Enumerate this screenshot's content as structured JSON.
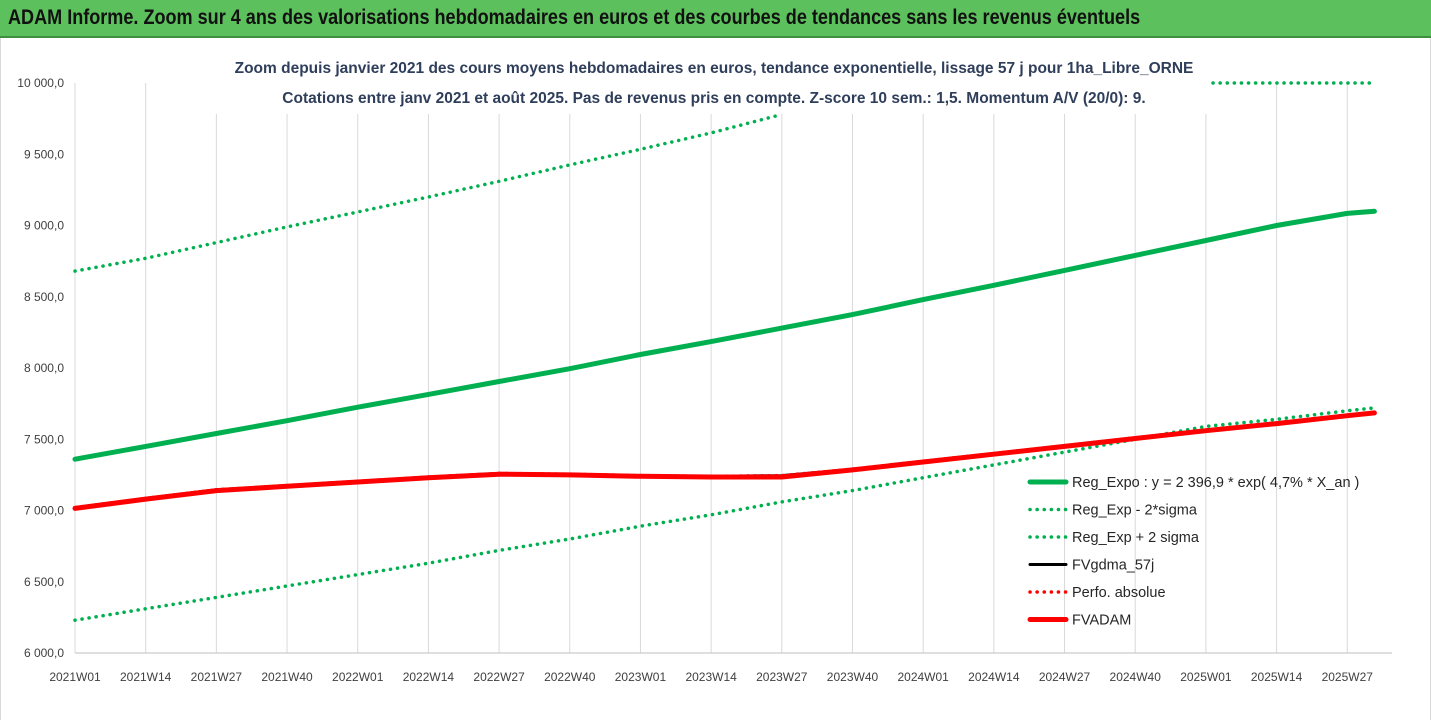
{
  "header": {
    "title": "ADAM Informe. Zoom sur 4 ans des valorisations hebdomadaires en euros et des courbes de tendances sans les revenus éventuels"
  },
  "chart_data": {
    "type": "line",
    "title_lines": [
      "Zoom depuis janvier 2021 des cours moyens hebdomadaires en euros, tendance exponentielle, lissage 57 j pour 1ha_Libre_ORNE",
      "Cotations entre janv 2021 et août 2025.  Pas de revenus pris en compte. Z-score 10 sem.: 1,5. Momentum A/V (20/0): 9."
    ],
    "xlabel": "",
    "ylabel": "",
    "ylim": [
      6000,
      10000
    ],
    "yticks": [
      "10 000,0",
      "9 500,0",
      "9 000,0",
      "8 500,0",
      "8 000,0",
      "7 500,0",
      "7 000,0",
      "6 500,0",
      "6 000,0"
    ],
    "ytick_values": [
      10000,
      9500,
      9000,
      8500,
      8000,
      7500,
      7000,
      6500,
      6000
    ],
    "xticks": [
      "2021W01",
      "2021W14",
      "2021W27",
      "2021W40",
      "2022W01",
      "2022W14",
      "2022W27",
      "2022W40",
      "2023W01",
      "2023W14",
      "2023W27",
      "2023W40",
      "2024W01",
      "2024W14",
      "2024W27",
      "2024W40",
      "2025W01",
      "2025W14",
      "2025W27"
    ],
    "grid": "vertical",
    "legend_position": "right",
    "x": [
      "2021W01",
      "2021W14",
      "2021W27",
      "2021W40",
      "2022W01",
      "2022W14",
      "2022W27",
      "2022W40",
      "2023W01",
      "2023W14",
      "2023W27",
      "2023W40",
      "2024W01",
      "2024W14",
      "2024W27",
      "2024W40",
      "2025W01",
      "2025W14",
      "2025W27",
      "2025W32"
    ],
    "series": [
      {
        "name": "Reg_Expo : y = 2 396,9 * exp( 4,7% *  X_an )",
        "style": "solid-thick",
        "color": "#00b050",
        "values": [
          7360,
          7450,
          7540,
          7630,
          7725,
          7815,
          7905,
          7995,
          8095,
          8185,
          8280,
          8375,
          8480,
          8580,
          8685,
          8790,
          8895,
          9000,
          9085,
          9100
        ]
      },
      {
        "name": "Reg_Exp - 2*sigma",
        "style": "dotted",
        "color": "#00b050",
        "values": [
          6230,
          6310,
          6390,
          6470,
          6550,
          6630,
          6720,
          6800,
          6890,
          6970,
          7060,
          7140,
          7230,
          7320,
          7410,
          7500,
          7590,
          7640,
          7700,
          7720
        ]
      },
      {
        "name": "Reg_Exp + 2 sigma",
        "style": "dotted",
        "color": "#00b050",
        "values": [
          8680,
          8770,
          8880,
          8990,
          9095,
          9200,
          9310,
          9425,
          9535,
          9650,
          9780,
          null,
          null,
          null,
          null,
          null,
          10000,
          10000,
          10000,
          10000
        ]
      },
      {
        "name": "FVgdma_57j",
        "style": "solid",
        "color": "#000000",
        "values": [
          7020,
          7085,
          7145,
          7175,
          7205,
          7235,
          7260,
          7255,
          7245,
          7240,
          7245,
          7290,
          7345,
          7400,
          7455,
          7510,
          7565,
          7615,
          7670,
          7685
        ]
      },
      {
        "name": "Perfo. absolue",
        "style": "dotted",
        "color": "#ff0000",
        "values": [
          7020,
          7085,
          7145,
          7175,
          7205,
          7235,
          7260,
          7255,
          7245,
          7240,
          7245,
          7290,
          7345,
          7400,
          7455,
          7510,
          7565,
          7615,
          7670,
          7685
        ]
      },
      {
        "name": "FVADAM",
        "style": "solid-thick",
        "color": "#ff0000",
        "values": [
          7015,
          7080,
          7140,
          7170,
          7200,
          7230,
          7255,
          7250,
          7240,
          7235,
          7235,
          7285,
          7340,
          7395,
          7450,
          7505,
          7560,
          7610,
          7665,
          7685
        ]
      }
    ]
  }
}
